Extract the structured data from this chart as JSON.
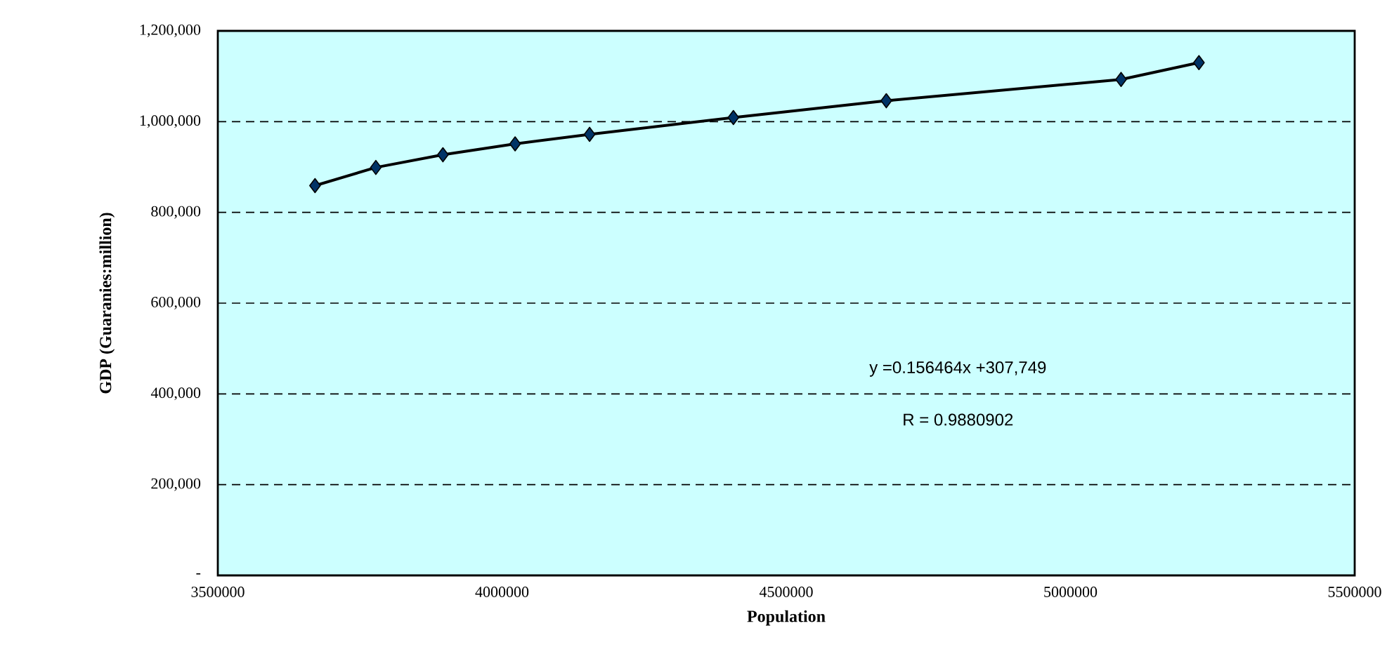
{
  "chart_data": {
    "type": "line",
    "xlabel": "Population",
    "ylabel": "GDP (Guaranies:million)",
    "x": [
      3671000,
      3778000,
      3896000,
      4023000,
      4154000,
      4407000,
      4676000,
      5089000,
      5226000
    ],
    "series": [
      {
        "color": "#003366",
        "values": [
          859000,
          899000,
          927000,
          951000,
          972000,
          1009000,
          1046000,
          1093000,
          1130000
        ]
      }
    ],
    "xlim": [
      3500000,
      5500000
    ],
    "xticks": [
      3500000,
      4000000,
      4500000,
      5000000,
      5500000
    ],
    "ylim": [
      0,
      1200000
    ],
    "yticks": [
      {
        "value": 0,
        "label": "-"
      },
      {
        "value": 200000,
        "label": "200,000"
      },
      {
        "value": 400000,
        "label": "400,000"
      },
      {
        "value": 600000,
        "label": "600,000"
      },
      {
        "value": 800000,
        "label": "800,000"
      },
      {
        "value": 1000000,
        "label": "1,000,000"
      },
      {
        "value": 1200000,
        "label": "1,200,000"
      }
    ],
    "grid": "y",
    "marker": "diamond",
    "line_style": "solid",
    "annotations": [
      "y =0.156464x +307,749",
      "R = 0.9880902"
    ]
  }
}
